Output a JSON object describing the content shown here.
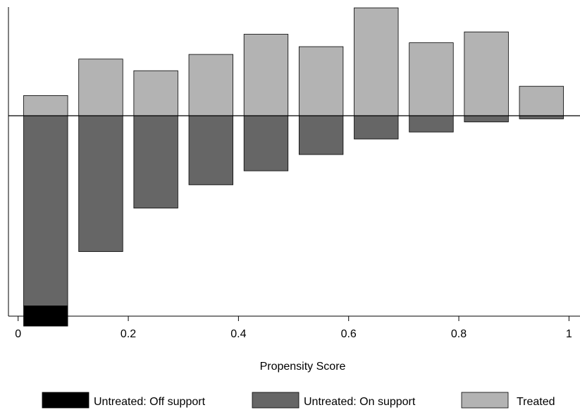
{
  "chart_data": {
    "type": "bar",
    "subtype": "mirrored-histogram",
    "xlabel": "Propensity Score",
    "ylabel": "",
    "title": "",
    "xlim": [
      -0.015,
      1.02
    ],
    "x_ticks": [
      "0",
      "0.2",
      "0.4",
      "0.6",
      "0.8",
      "1"
    ],
    "x_tick_values": [
      0,
      0.2,
      0.4,
      0.6,
      0.8,
      1
    ],
    "ylim": [
      -0.27,
      0.14
    ],
    "baseline": 0,
    "bins": [
      {
        "x0": 0.01,
        "x1": 0.09,
        "treated": 0.026,
        "untreated_on": 0.245,
        "untreated_off": 0.026
      },
      {
        "x0": 0.11,
        "x1": 0.19,
        "treated": 0.073,
        "untreated_on": 0.175,
        "untreated_off": 0
      },
      {
        "x0": 0.21,
        "x1": 0.29,
        "treated": 0.058,
        "untreated_on": 0.119,
        "untreated_off": 0
      },
      {
        "x0": 0.31,
        "x1": 0.39,
        "treated": 0.079,
        "untreated_on": 0.089,
        "untreated_off": 0
      },
      {
        "x0": 0.41,
        "x1": 0.49,
        "treated": 0.105,
        "untreated_on": 0.071,
        "untreated_off": 0
      },
      {
        "x0": 0.51,
        "x1": 0.59,
        "treated": 0.089,
        "untreated_on": 0.05,
        "untreated_off": 0
      },
      {
        "x0": 0.61,
        "x1": 0.69,
        "treated": 0.139,
        "untreated_on": 0.03,
        "untreated_off": 0
      },
      {
        "x0": 0.71,
        "x1": 0.79,
        "treated": 0.094,
        "untreated_on": 0.021,
        "untreated_off": 0
      },
      {
        "x0": 0.81,
        "x1": 0.89,
        "treated": 0.108,
        "untreated_on": 0.008,
        "untreated_off": 0
      },
      {
        "x0": 0.91,
        "x1": 0.99,
        "treated": 0.038,
        "untreated_on": 0.004,
        "untreated_off": 0
      }
    ],
    "series": [
      {
        "key": "untreated_off",
        "name": "Untreated: Off support",
        "color": "#000000"
      },
      {
        "key": "untreated_on",
        "name": "Untreated: On support",
        "color": "#666666"
      },
      {
        "key": "treated",
        "name": "Treated",
        "color": "#b3b3b3"
      }
    ],
    "legend_position": "bottom",
    "grid": false
  }
}
